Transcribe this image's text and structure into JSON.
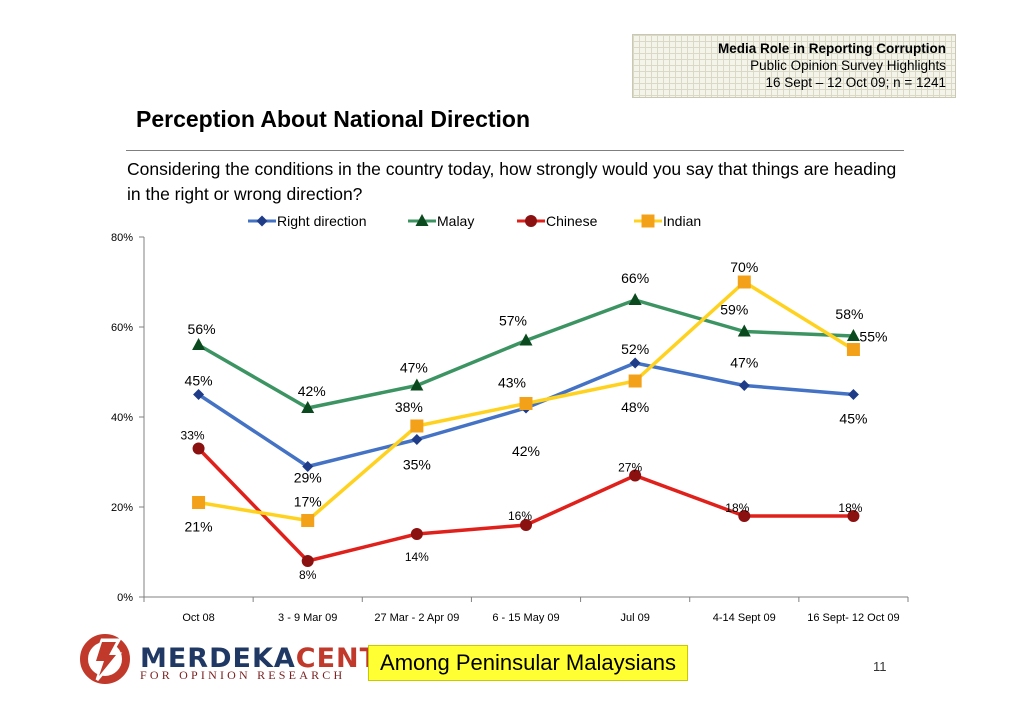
{
  "header": {
    "line1": "Media Role in Reporting Corruption",
    "line2": "Public Opinion Survey Highlights",
    "line3": "16 Sept – 12 Oct 09; n = 1241"
  },
  "page_title": "Perception About National Direction",
  "question": "Considering the conditions in the country today, how strongly would you say that things are heading in the right or wrong direction?",
  "chart_data": {
    "type": "line",
    "categories": [
      "Oct 08",
      "3 - 9 Mar 09",
      "27 Mar - 2 Apr 09",
      "6 - 15 May 09",
      "Jul 09",
      "4-14 Sept 09",
      "16 Sept- 12 Oct 09"
    ],
    "ylim": [
      0,
      80
    ],
    "yticks": [
      "0%",
      "20%",
      "40%",
      "60%",
      "80%"
    ],
    "grid": false,
    "legend_position": "top",
    "series": [
      {
        "name": "Right direction",
        "color": "#4472c4",
        "marker": "diamond",
        "marker_color": "#1f3c88",
        "values": [
          45,
          29,
          35,
          42,
          52,
          47,
          45
        ],
        "labels": [
          "45%",
          "29%",
          "35%",
          "42%",
          "52%",
          "47%",
          "45%"
        ]
      },
      {
        "name": "Malay",
        "color": "#3c9463",
        "marker": "triangle",
        "marker_color": "#0b4a1e",
        "values": [
          56,
          42,
          47,
          57,
          66,
          59,
          58
        ],
        "labels": [
          "56%",
          "42%",
          "47%",
          "57%",
          "66%",
          "59%",
          "58%"
        ]
      },
      {
        "name": "Chinese",
        "color": "#e0201b",
        "marker": "circle",
        "marker_color": "#8b1010",
        "values": [
          33,
          8,
          14,
          16,
          27,
          18,
          18
        ],
        "labels": [
          "33%",
          "8%",
          "14%",
          "16%",
          "27%",
          "18%",
          "18%"
        ]
      },
      {
        "name": "Indian",
        "color": "#ffd21f",
        "marker": "square",
        "marker_color": "#f4a11a",
        "values": [
          21,
          17,
          38,
          43,
          48,
          70,
          55
        ],
        "labels": [
          "21%",
          "17%",
          "38%",
          "43%",
          "48%",
          "70%",
          "55%"
        ]
      }
    ]
  },
  "footer": {
    "logo_text_1": "MERDEKA",
    "logo_text_2": "CENTER",
    "logo_subtitle": "FOR OPINION RESEARCH",
    "caption": "Among Peninsular Malaysians",
    "page_number": "11"
  }
}
